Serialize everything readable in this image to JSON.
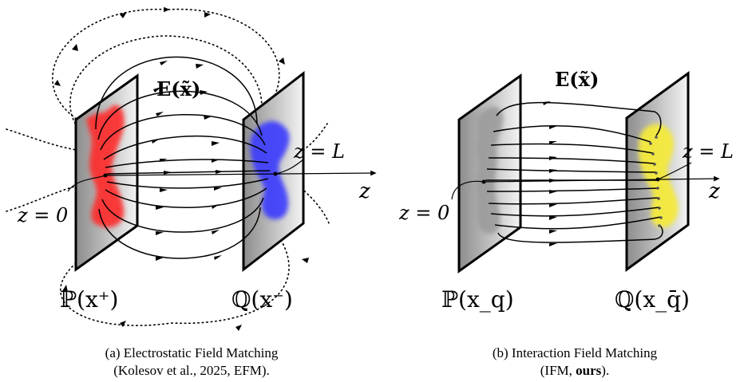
{
  "panel_a": {
    "field_label": "E(x̃)",
    "z0_label": "z = 0",
    "zL_label": "z = L",
    "axis_label": "z",
    "left_dist_label": "ℙ(x⁺)",
    "right_dist_label": "ℚ(x⁻)",
    "left_color": "#ff2a2a",
    "right_color": "#3b3bff",
    "caption_line1": "(a) Electrostatic Field Matching",
    "caption_line2": "(Kolesov et al., 2025, EFM)."
  },
  "panel_b": {
    "field_label": "E(x̃)",
    "z0_label": "z = 0",
    "zL_label": "z = L",
    "axis_label": "z",
    "left_dist_label": "ℙ(x_q)",
    "right_dist_label": "ℚ(x_q̄)",
    "left_color": "#9a9a9a",
    "right_color": "#f5ea3c",
    "caption_line1": "(b) Interaction Field Matching",
    "caption_prefix": "(IFM, ",
    "caption_bold": "ours",
    "caption_suffix": ")."
  }
}
